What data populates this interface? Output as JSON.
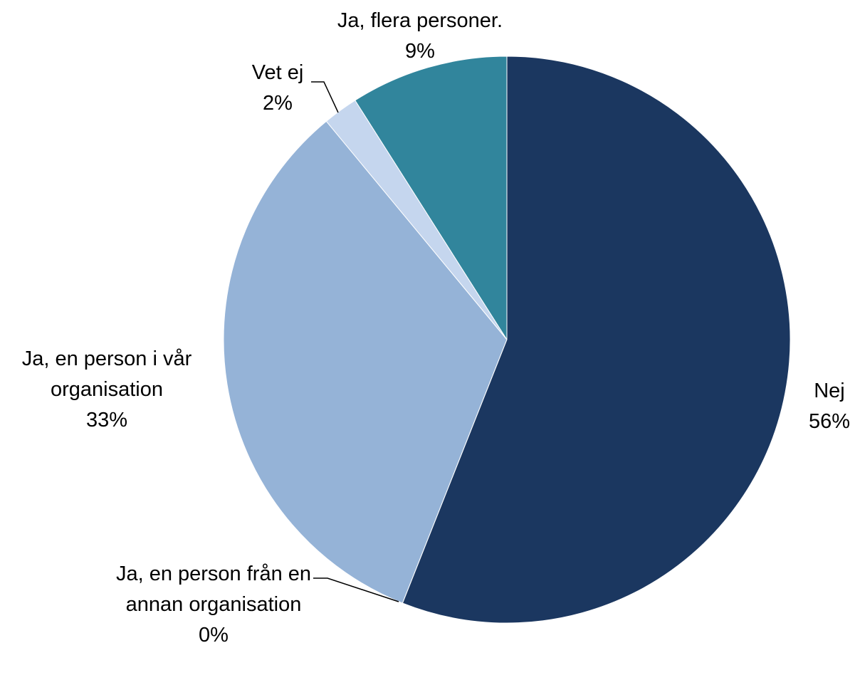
{
  "chart_data": {
    "type": "pie",
    "categories": [
      "Nej",
      "Ja, en person från en annan organisation",
      "Ja, en person i vår organisation",
      "Vet ej",
      "Ja, flera personer."
    ],
    "values": [
      56,
      0,
      33,
      2,
      9
    ],
    "value_labels": [
      "56%",
      "0%",
      "33%",
      "2%",
      "9%"
    ],
    "colors": [
      "#1b3760",
      "#4f81bd",
      "#95b3d7",
      "#c5d6ee",
      "#31859c"
    ]
  }
}
